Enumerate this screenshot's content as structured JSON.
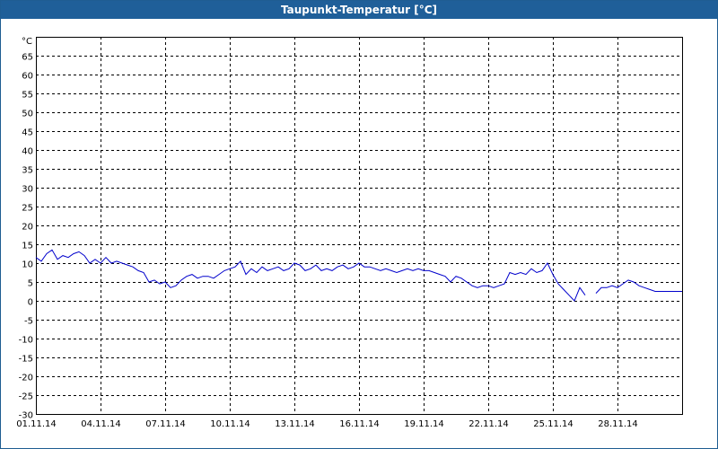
{
  "window": {
    "title": "Taupunkt-Temperatur [°C]"
  },
  "colors": {
    "title_bar": "#1f5f99",
    "series": "#0000cc",
    "grid": "#000000"
  },
  "chart_data": {
    "type": "line",
    "title": "Taupunkt-Temperatur [°C]",
    "unit_label": "°C",
    "ylim": [
      -30,
      70
    ],
    "yticks": [
      65,
      60,
      55,
      50,
      45,
      40,
      35,
      30,
      25,
      20,
      15,
      10,
      5,
      0,
      -5,
      -10,
      -15,
      -20,
      -25,
      -30
    ],
    "xlim": [
      "2014-11-01",
      "2014-12-01"
    ],
    "xticks": [
      {
        "label": "01.11.14",
        "date": "2014-11-01"
      },
      {
        "label": "04.11.14",
        "date": "2014-11-04"
      },
      {
        "label": "07.11.14",
        "date": "2014-11-07"
      },
      {
        "label": "10.11.14",
        "date": "2014-11-10"
      },
      {
        "label": "13.11.14",
        "date": "2014-11-13"
      },
      {
        "label": "16.11.14",
        "date": "2014-11-16"
      },
      {
        "label": "19.11.14",
        "date": "2014-11-19"
      },
      {
        "label": "22.11.14",
        "date": "2014-11-22"
      },
      {
        "label": "25.11.14",
        "date": "2014-11-25"
      },
      {
        "label": "28.11.14",
        "date": "2014-11-28"
      }
    ],
    "grid": true,
    "series": [
      {
        "segments": [
          [
            [
              "2014-11-01 00:00",
              11.5
            ],
            [
              "2014-11-01 06:00",
              10.5
            ],
            [
              "2014-11-01 12:00",
              12.5
            ],
            [
              "2014-11-01 18:00",
              13.5
            ],
            [
              "2014-11-02 00:00",
              11.0
            ],
            [
              "2014-11-02 06:00",
              12.0
            ],
            [
              "2014-11-02 12:00",
              11.5
            ],
            [
              "2014-11-02 18:00",
              12.5
            ],
            [
              "2014-11-03 00:00",
              13.0
            ],
            [
              "2014-11-03 06:00",
              12.0
            ],
            [
              "2014-11-03 12:00",
              10.0
            ],
            [
              "2014-11-03 18:00",
              11.0
            ],
            [
              "2014-11-04 00:00",
              10.0
            ],
            [
              "2014-11-04 06:00",
              11.5
            ],
            [
              "2014-11-04 12:00",
              10.0
            ],
            [
              "2014-11-04 18:00",
              10.5
            ],
            [
              "2014-11-05 00:00",
              10.0
            ],
            [
              "2014-11-05 06:00",
              9.5
            ],
            [
              "2014-11-05 12:00",
              9.0
            ],
            [
              "2014-11-05 18:00",
              8.0
            ],
            [
              "2014-11-06 00:00",
              7.5
            ],
            [
              "2014-11-06 06:00",
              5.0
            ],
            [
              "2014-11-06 12:00",
              5.5
            ],
            [
              "2014-11-06 18:00",
              4.5
            ],
            [
              "2014-11-07 00:00",
              5.0
            ],
            [
              "2014-11-07 06:00",
              3.5
            ],
            [
              "2014-11-07 12:00",
              4.0
            ],
            [
              "2014-11-07 18:00",
              5.5
            ],
            [
              "2014-11-08 00:00",
              6.5
            ],
            [
              "2014-11-08 06:00",
              7.0
            ],
            [
              "2014-11-08 12:00",
              6.0
            ],
            [
              "2014-11-08 18:00",
              6.5
            ],
            [
              "2014-11-09 00:00",
              6.5
            ],
            [
              "2014-11-09 06:00",
              6.0
            ],
            [
              "2014-11-09 12:00",
              7.0
            ],
            [
              "2014-11-09 18:00",
              8.0
            ],
            [
              "2014-11-10 00:00",
              8.5
            ],
            [
              "2014-11-10 06:00",
              9.0
            ],
            [
              "2014-11-10 12:00",
              10.5
            ],
            [
              "2014-11-10 18:00",
              7.0
            ],
            [
              "2014-11-11 00:00",
              8.5
            ],
            [
              "2014-11-11 06:00",
              7.5
            ],
            [
              "2014-11-11 12:00",
              9.0
            ],
            [
              "2014-11-11 18:00",
              8.0
            ],
            [
              "2014-11-12 00:00",
              8.5
            ],
            [
              "2014-11-12 06:00",
              9.0
            ],
            [
              "2014-11-12 12:00",
              8.0
            ],
            [
              "2014-11-12 18:00",
              8.5
            ],
            [
              "2014-11-13 00:00",
              10.0
            ],
            [
              "2014-11-13 06:00",
              9.5
            ],
            [
              "2014-11-13 12:00",
              8.0
            ],
            [
              "2014-11-13 18:00",
              8.5
            ],
            [
              "2014-11-14 00:00",
              9.5
            ],
            [
              "2014-11-14 06:00",
              8.0
            ],
            [
              "2014-11-14 12:00",
              8.5
            ],
            [
              "2014-11-14 18:00",
              8.0
            ],
            [
              "2014-11-15 00:00",
              9.0
            ],
            [
              "2014-11-15 06:00",
              9.5
            ],
            [
              "2014-11-15 12:00",
              8.5
            ],
            [
              "2014-11-15 18:00",
              9.0
            ],
            [
              "2014-11-16 00:00",
              10.0
            ],
            [
              "2014-11-16 06:00",
              9.0
            ],
            [
              "2014-11-16 12:00",
              9.0
            ],
            [
              "2014-11-16 18:00",
              8.5
            ],
            [
              "2014-11-17 00:00",
              8.0
            ],
            [
              "2014-11-17 06:00",
              8.5
            ],
            [
              "2014-11-17 12:00",
              8.0
            ],
            [
              "2014-11-17 18:00",
              7.5
            ],
            [
              "2014-11-18 00:00",
              8.0
            ],
            [
              "2014-11-18 06:00",
              8.5
            ],
            [
              "2014-11-18 12:00",
              8.0
            ],
            [
              "2014-11-18 18:00",
              8.5
            ],
            [
              "2014-11-19 00:00",
              8.0
            ],
            [
              "2014-11-19 06:00",
              8.0
            ],
            [
              "2014-11-19 12:00",
              7.5
            ],
            [
              "2014-11-19 18:00",
              7.0
            ],
            [
              "2014-11-20 00:00",
              6.5
            ],
            [
              "2014-11-20 06:00",
              5.0
            ],
            [
              "2014-11-20 12:00",
              6.5
            ],
            [
              "2014-11-20 18:00",
              6.0
            ],
            [
              "2014-11-21 00:00",
              5.0
            ],
            [
              "2014-11-21 06:00",
              4.0
            ],
            [
              "2014-11-21 12:00",
              3.5
            ],
            [
              "2014-11-21 18:00",
              4.0
            ],
            [
              "2014-11-22 00:00",
              4.0
            ],
            [
              "2014-11-22 06:00",
              3.5
            ],
            [
              "2014-11-22 12:00",
              4.0
            ],
            [
              "2014-11-22 18:00",
              4.5
            ],
            [
              "2014-11-23 00:00",
              7.5
            ],
            [
              "2014-11-23 06:00",
              7.0
            ],
            [
              "2014-11-23 12:00",
              7.5
            ],
            [
              "2014-11-23 18:00",
              7.0
            ],
            [
              "2014-11-24 00:00",
              8.5
            ],
            [
              "2014-11-24 06:00",
              7.5
            ],
            [
              "2014-11-24 12:00",
              8.0
            ],
            [
              "2014-11-24 18:00",
              10.0
            ],
            [
              "2014-11-25 00:00",
              7.0
            ],
            [
              "2014-11-25 06:00",
              4.5
            ],
            [
              "2014-11-25 12:00",
              3.0
            ],
            [
              "2014-11-25 18:00",
              1.5
            ],
            [
              "2014-11-26 00:00",
              0.0
            ],
            [
              "2014-11-26 06:00",
              3.5
            ],
            [
              "2014-11-26 12:00",
              1.5
            ]
          ],
          [
            [
              "2014-11-27 00:00",
              2.0
            ],
            [
              "2014-11-27 06:00",
              3.5
            ],
            [
              "2014-11-27 12:00",
              3.5
            ],
            [
              "2014-11-27 18:00",
              4.0
            ],
            [
              "2014-11-28 00:00",
              3.5
            ],
            [
              "2014-11-28 06:00",
              4.5
            ],
            [
              "2014-11-28 12:00",
              5.5
            ],
            [
              "2014-11-28 18:00",
              5.0
            ],
            [
              "2014-11-29 00:00",
              4.0
            ],
            [
              "2014-11-29 06:00",
              3.5
            ],
            [
              "2014-11-29 12:00",
              3.0
            ],
            [
              "2014-11-29 18:00",
              2.5
            ],
            [
              "2014-11-30 00:00",
              2.5
            ],
            [
              "2014-11-30 06:00",
              2.5
            ],
            [
              "2014-11-30 12:00",
              2.5
            ],
            [
              "2014-11-30 18:00",
              2.5
            ],
            [
              "2014-12-01 00:00",
              2.5
            ]
          ]
        ]
      }
    ]
  }
}
